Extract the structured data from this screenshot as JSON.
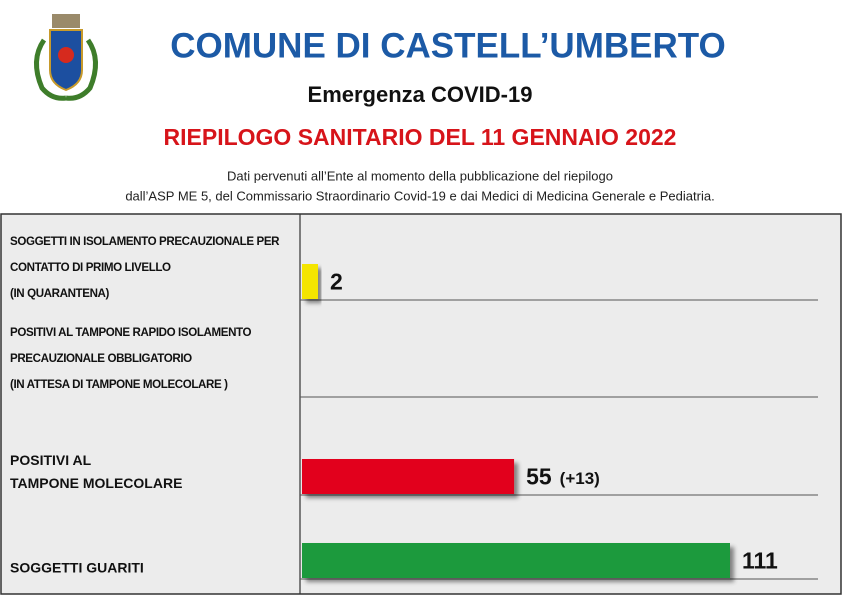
{
  "header": {
    "title": "COMUNE DI CASTELL’UMBERTO",
    "subtitle": "Emergenza COVID-19"
  },
  "chart_data": {
    "type": "bar",
    "orientation": "horizontal",
    "title": "RIEPILOGO SANITARIO DEL 11 GENNAIO 2022",
    "subtitle": [
      "Dati pervenuti all’Ente al momento della pubblicazione del riepilogo",
      "dall’ASP ME 5, del Commissario Straordinario Covid-19 e dai Medici di Medicina Generale e Pediatria."
    ],
    "categories": [
      [
        "SOGGETTI IN ISOLAMENTO PRECAUZIONALE PER",
        "CONTATTO DI PRIMO LIVELLO",
        "(IN QUARANTENA)"
      ],
      [
        "POSITIVI AL TAMPONE RAPIDO ISOLAMENTO",
        " PRECAUZIONALE OBBLIGATORIO",
        "(IN ATTESA DI TAMPONE MOLECOLARE )"
      ],
      [
        "POSITIVI AL",
        "TAMPONE MOLECOLARE"
      ],
      [
        "SOGGETTI GUARITI"
      ]
    ],
    "values": [
      2,
      null,
      55,
      111
    ],
    "value_notes": [
      null,
      null,
      "(+13)",
      null
    ],
    "colors": [
      "#f4e500",
      null,
      "#e2061b",
      "#1e9a3c"
    ]
  }
}
